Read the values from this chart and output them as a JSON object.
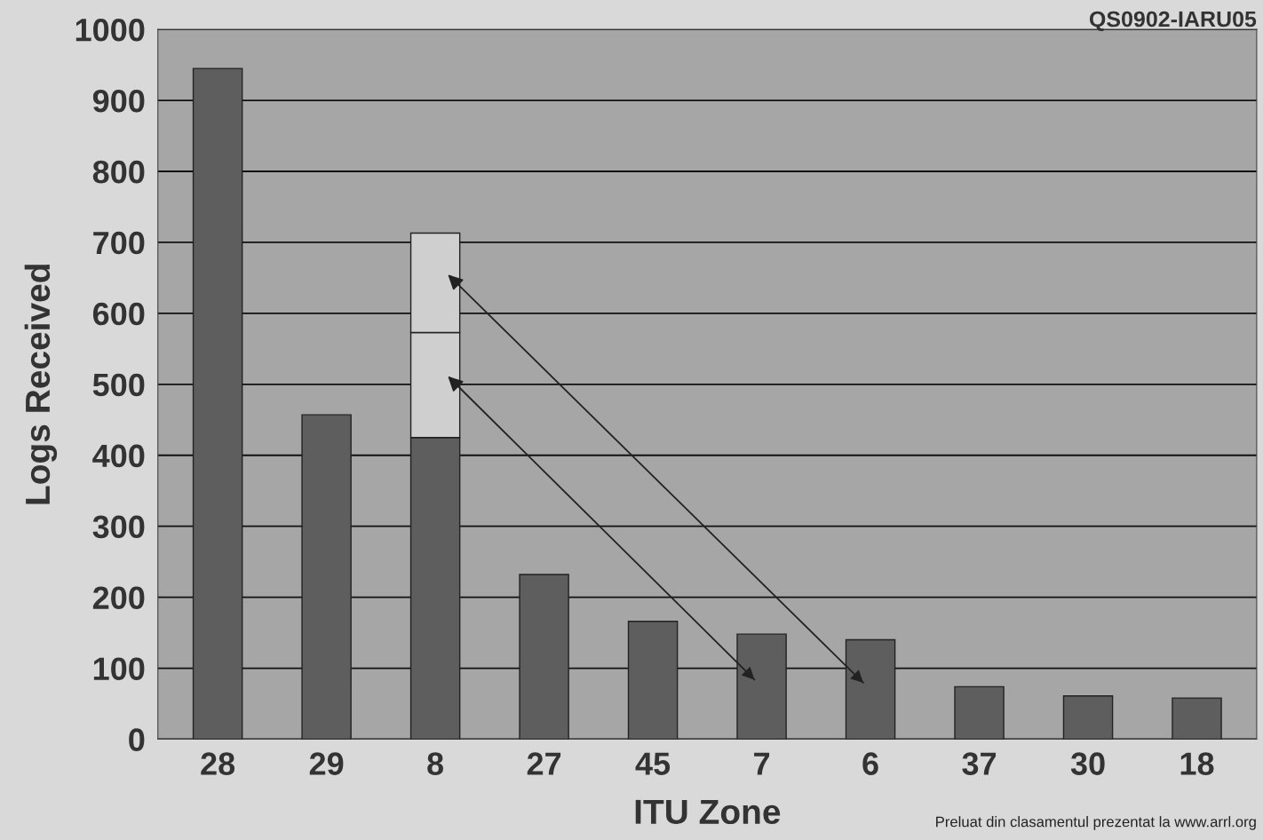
{
  "chart_data": {
    "type": "bar",
    "stacked": true,
    "xlabel": "ITU Zone",
    "ylabel": "Logs Received",
    "categories": [
      "28",
      "29",
      "8",
      "27",
      "45",
      "7",
      "6",
      "37",
      "30",
      "18"
    ],
    "series": [
      {
        "color": "#5e5e5e",
        "values": [
          945,
          457,
          425,
          232,
          166,
          148,
          140,
          74,
          61,
          58
        ]
      },
      {
        "color": "#cfcfcf",
        "values": [
          null,
          null,
          148,
          null,
          null,
          null,
          null,
          null,
          null,
          null
        ]
      },
      {
        "color": "#cfcfcf",
        "values": [
          null,
          null,
          140,
          null,
          null,
          null,
          null,
          null,
          null,
          null
        ]
      }
    ],
    "ylim": [
      0,
      1000
    ],
    "yticks": [
      0,
      100,
      200,
      300,
      400,
      500,
      600,
      700,
      800,
      900,
      1000
    ],
    "grid": "y",
    "annotations": [
      "QS0902-IARU05",
      "Preluat din clasamentul prezentat la www.arrl.org"
    ]
  }
}
